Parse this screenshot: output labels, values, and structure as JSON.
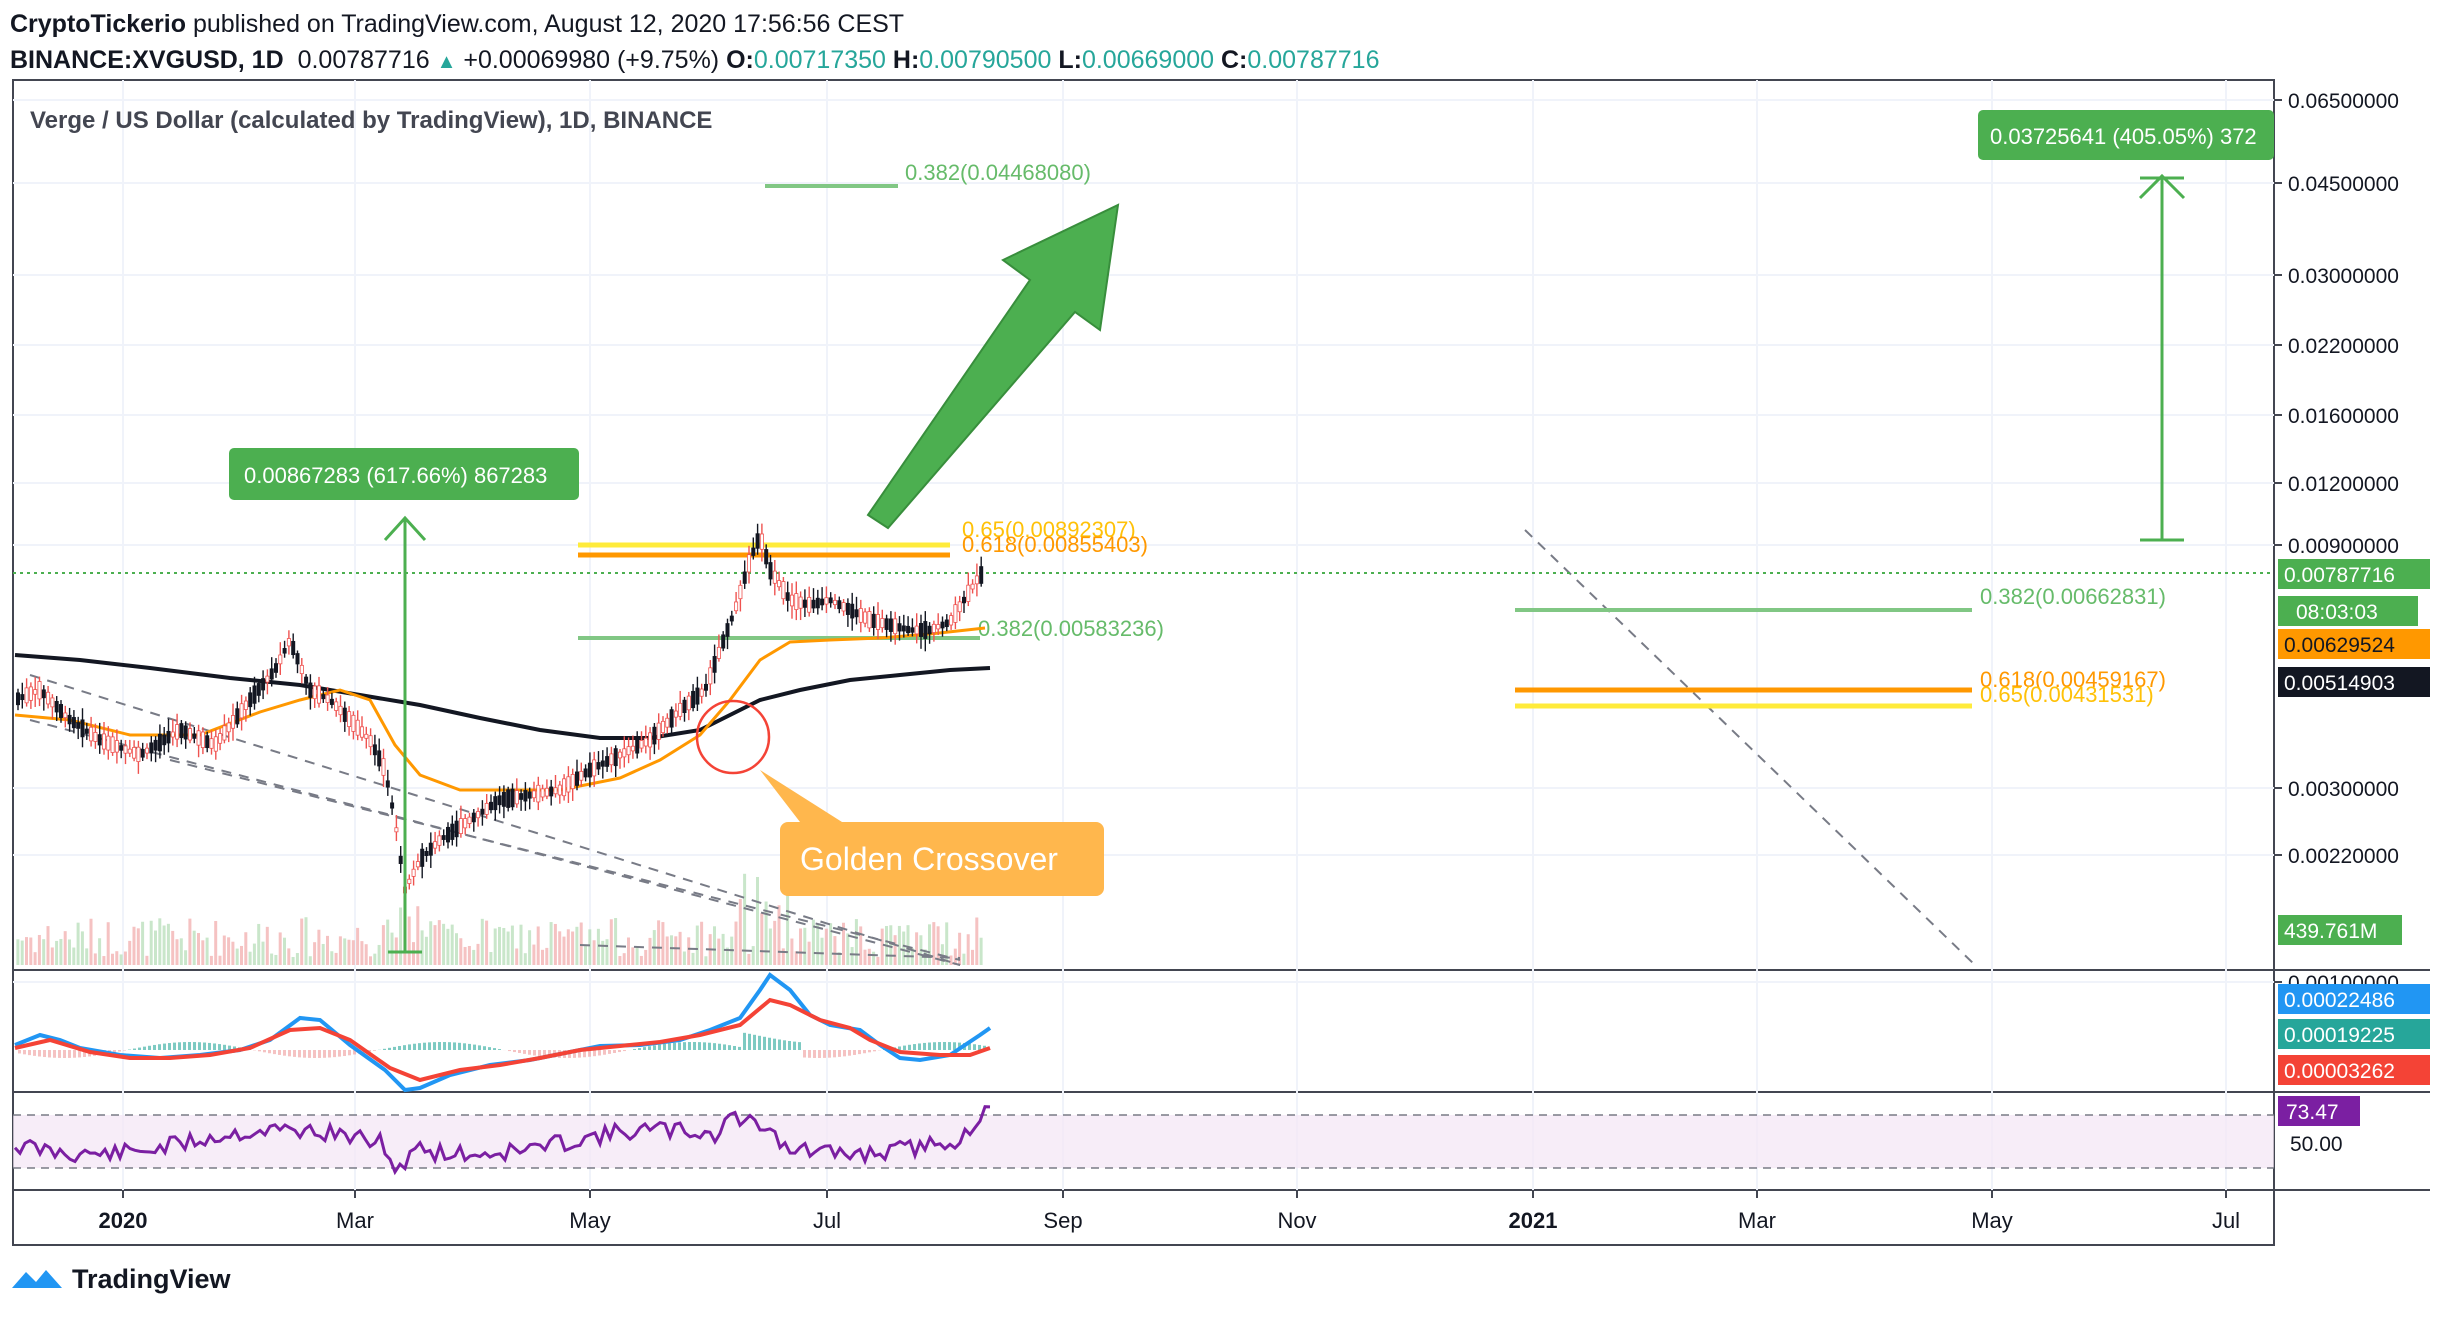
{
  "header": {
    "author": "CryptoTickerio",
    "published": "published on TradingView.com, August 12, 2020 17:56:56 CEST",
    "symbol": "BINANCE:XVGUSD, 1D",
    "last": "0.00787716",
    "change": "+0.00069980 (+9.75%)",
    "o_label": "O:",
    "o": "0.00717350",
    "h_label": "H:",
    "h": "0.00790500",
    "l_label": "L:",
    "l": "0.00669000",
    "c_label": "C:",
    "c": "0.00787716"
  },
  "chart": {
    "title": "Verge / US Dollar (calculated by TradingView), 1D, BINANCE",
    "price_axis": [
      "0.06500000",
      "0.04500000",
      "0.03000000",
      "0.02200000",
      "0.01600000",
      "0.01200000",
      "0.00900000",
      "0.00300000",
      "0.00220000",
      "0.00100000"
    ],
    "badges": {
      "last_price": "0.00787716",
      "countdown": "08:03:03",
      "ema": "0.00629524",
      "sma": "0.00514903",
      "volume": "439.761M",
      "macd1": "0.00022486",
      "macd2": "0.00019225",
      "hist": "0.00003262",
      "rsi": "73.47",
      "rsi_level": "50.00"
    },
    "time_axis": [
      "2020",
      "Mar",
      "May",
      "Jul",
      "Sep",
      "Nov",
      "2021",
      "Mar",
      "May",
      "Jul"
    ],
    "annotations": {
      "left_measure": "0.00867283 (617.66%) 867283",
      "right_measure": "0.03725641 (405.05%) 372",
      "fib_top": "0.382(0.04468080)",
      "fib_mid_65": "0.65(0.00892307)",
      "fib_mid_618": "0.618(0.00855403)",
      "fib_mid_382": "0.382(0.00583236)",
      "fib_right_382": "0.382(0.00662831)",
      "fib_right_618": "0.618(0.00459167)",
      "fib_right_65": "0.65(0.00431531)",
      "callout": "Golden Crossover"
    },
    "colors": {
      "green": "#4caf50",
      "orange": "#ff9800",
      "yellow": "#ffeb3b",
      "black": "#131722",
      "macd_blue": "#2196f3",
      "macd_red": "#f44336",
      "rsi_purple": "#7b1fa2",
      "callout": "#ffb74d"
    }
  },
  "footer": {
    "brand": "TradingView"
  }
}
